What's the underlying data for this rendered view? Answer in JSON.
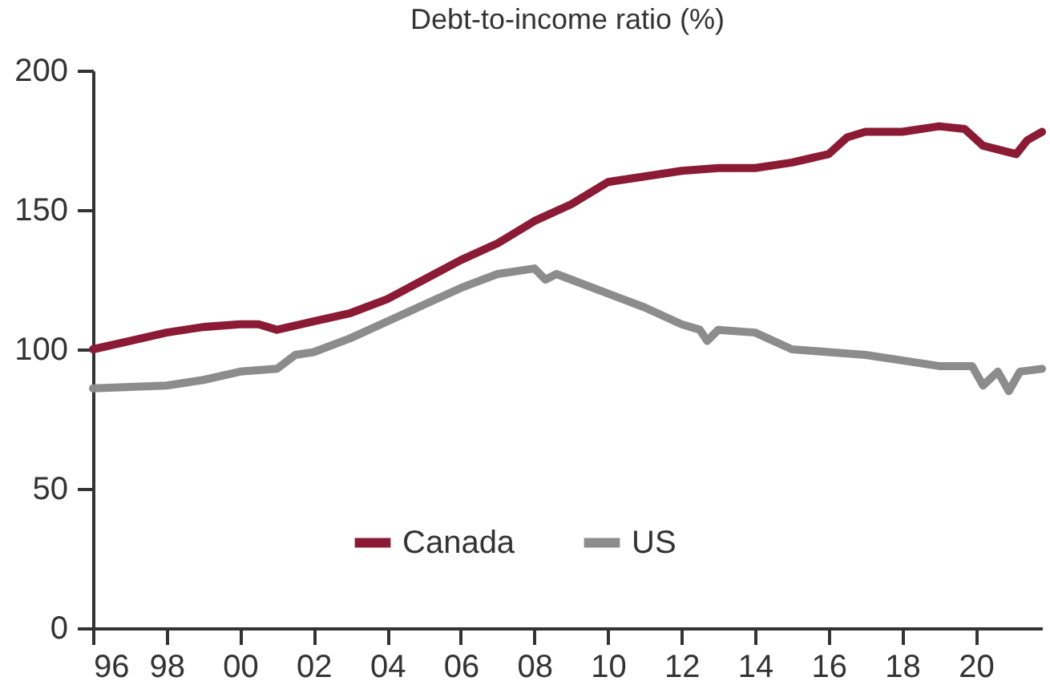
{
  "chart_data": {
    "type": "line",
    "title": "Debt-to-income ratio (%)",
    "x": [
      1996,
      1997,
      1998,
      1999,
      2000,
      2000.5,
      2001,
      2002,
      2003,
      2004,
      2005,
      2006,
      2007,
      2008,
      2009,
      2010,
      2011,
      2012,
      2013,
      2014,
      2015,
      2016,
      2016.5,
      2017,
      2018,
      2019,
      2019.7,
      2020.2,
      2020.8,
      2021.1,
      2021.4,
      2021.8
    ],
    "series": [
      {
        "name": "Canada",
        "color": "#8b1a35",
        "values": [
          100,
          103,
          106,
          108,
          109,
          109,
          107,
          110,
          113,
          118,
          125,
          132,
          138,
          146,
          152,
          160,
          162,
          164,
          165,
          165,
          167,
          170,
          176,
          178,
          178,
          180,
          179,
          173,
          171,
          170,
          175,
          178
        ]
      },
      {
        "name": "US",
        "color": "#8c8c8c",
        "x": [
          1996,
          1998,
          1999,
          2000,
          2001,
          2001.5,
          2002,
          2003,
          2004,
          2005,
          2006,
          2007,
          2008,
          2008.3,
          2008.6,
          2009,
          2010,
          2011,
          2012,
          2012.5,
          2012.7,
          2013,
          2014,
          2015,
          2016,
          2017,
          2018,
          2019,
          2019.9,
          2020.2,
          2020.6,
          2020.9,
          2021.2,
          2021.8
        ],
        "values": [
          86,
          87,
          89,
          92,
          93,
          98,
          99,
          104,
          110,
          116,
          122,
          127,
          129,
          125,
          127,
          125,
          120,
          115,
          109,
          107,
          103,
          107,
          106,
          100,
          99,
          98,
          96,
          94,
          94,
          87,
          92,
          85,
          92,
          93
        ]
      }
    ],
    "xlim": [
      1996,
      2021.8
    ],
    "xticks": [
      {
        "value": 1996,
        "label": "96"
      },
      {
        "value": 1998,
        "label": "98"
      },
      {
        "value": 2000,
        "label": "00"
      },
      {
        "value": 2002,
        "label": "02"
      },
      {
        "value": 2004,
        "label": "04"
      },
      {
        "value": 2006,
        "label": "06"
      },
      {
        "value": 2008,
        "label": "08"
      },
      {
        "value": 2010,
        "label": "10"
      },
      {
        "value": 2012,
        "label": "12"
      },
      {
        "value": 2014,
        "label": "14"
      },
      {
        "value": 2016,
        "label": "16"
      },
      {
        "value": 2018,
        "label": "18"
      },
      {
        "value": 2020,
        "label": "20"
      }
    ],
    "ylim": [
      0,
      200
    ],
    "yticks": [
      0,
      50,
      100,
      150,
      200
    ],
    "grid": false,
    "legend": "bottom",
    "line_style": "solid"
  }
}
